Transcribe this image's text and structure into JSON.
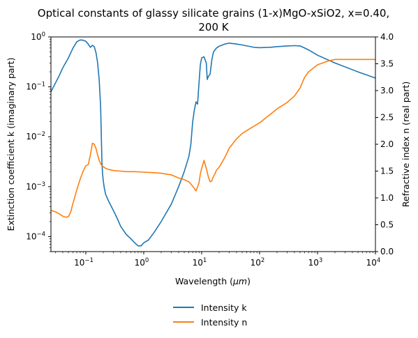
{
  "chart_data": {
    "type": "line",
    "title_line1": "Optical constants of glassy silicate grains (1-x)MgO-xSiO2, x=0.40,",
    "title_line2": "200 K",
    "xlabel_prefix": "Wavelength (",
    "xlabel_unit": "μm",
    "xlabel_suffix": ")",
    "ylabel_left": "Extinction coefficient k (imaginary part)",
    "ylabel_right": "Refractive index n (real part)",
    "x_scale": "log",
    "xlim": [
      0.025,
      10000
    ],
    "y_left_scale": "log",
    "y_left_lim": [
      5e-05,
      1
    ],
    "y_right_scale": "linear",
    "y_right_lim": [
      0,
      4
    ],
    "x_ticks": [
      {
        "value": 0.1,
        "base": "10",
        "exp": "−1"
      },
      {
        "value": 1,
        "base": "10",
        "exp": "0"
      },
      {
        "value": 10,
        "base": "10",
        "exp": "1"
      },
      {
        "value": 100,
        "base": "10",
        "exp": "2"
      },
      {
        "value": 1000,
        "base": "10",
        "exp": "3"
      },
      {
        "value": 10000,
        "base": "10",
        "exp": "4"
      }
    ],
    "y_left_ticks": [
      {
        "value": 1,
        "base": "10",
        "exp": "0"
      },
      {
        "value": 0.1,
        "base": "10",
        "exp": "−1"
      },
      {
        "value": 0.01,
        "base": "10",
        "exp": "−2"
      },
      {
        "value": 0.001,
        "base": "10",
        "exp": "−3"
      },
      {
        "value": 0.0001,
        "base": "10",
        "exp": "−4"
      }
    ],
    "y_right_ticks": [
      "0.0",
      "0.5",
      "1.0",
      "1.5",
      "2.0",
      "2.5",
      "3.0",
      "3.5",
      "4.0"
    ],
    "legend_position": "below",
    "grid": false,
    "series": [
      {
        "name": "Intensity k",
        "axis": "left",
        "color": "#1f77b4",
        "x": [
          0.025,
          0.03,
          0.035,
          0.04,
          0.05,
          0.06,
          0.07,
          0.08,
          0.09,
          0.1,
          0.11,
          0.12,
          0.13,
          0.14,
          0.15,
          0.16,
          0.17,
          0.18,
          0.19,
          0.195,
          0.2,
          0.21,
          0.22,
          0.25,
          0.3,
          0.35,
          0.4,
          0.5,
          0.6,
          0.7,
          0.8,
          0.9,
          1.0,
          1.2,
          1.5,
          2,
          3,
          4,
          5,
          6,
          6.5,
          7,
          7.5,
          8,
          8.5,
          9,
          9.5,
          10,
          11,
          12,
          12.5,
          13,
          14,
          15,
          16,
          18,
          20,
          25,
          30,
          40,
          50,
          60,
          70,
          80,
          100,
          150,
          200,
          300,
          400,
          500,
          600,
          700,
          1000,
          2000,
          5000,
          10000
        ],
        "values": [
          0.08,
          0.12,
          0.17,
          0.24,
          0.38,
          0.6,
          0.8,
          0.87,
          0.86,
          0.82,
          0.72,
          0.62,
          0.68,
          0.64,
          0.48,
          0.3,
          0.14,
          0.04,
          0.003,
          0.0018,
          0.0013,
          0.0009,
          0.0007,
          0.0005,
          0.00033,
          0.00023,
          0.00016,
          0.00011,
          9e-05,
          7.5e-05,
          6.5e-05,
          6.5e-05,
          7.5e-05,
          8.5e-05,
          0.00012,
          0.0002,
          0.00045,
          0.001,
          0.002,
          0.004,
          0.007,
          0.02,
          0.035,
          0.05,
          0.045,
          0.12,
          0.28,
          0.38,
          0.4,
          0.3,
          0.14,
          0.16,
          0.18,
          0.35,
          0.5,
          0.6,
          0.65,
          0.72,
          0.75,
          0.72,
          0.69,
          0.66,
          0.64,
          0.62,
          0.61,
          0.62,
          0.64,
          0.66,
          0.67,
          0.66,
          0.6,
          0.55,
          0.43,
          0.3,
          0.2,
          0.15
        ]
      },
      {
        "name": "Intensity n",
        "axis": "right",
        "color": "#ff7f0e",
        "x": [
          0.025,
          0.03,
          0.035,
          0.04,
          0.045,
          0.05,
          0.055,
          0.06,
          0.07,
          0.08,
          0.09,
          0.1,
          0.11,
          0.12,
          0.13,
          0.14,
          0.15,
          0.16,
          0.17,
          0.18,
          0.19,
          0.2,
          0.22,
          0.25,
          0.3,
          0.4,
          0.5,
          0.7,
          1,
          1.5,
          2,
          3,
          4,
          5,
          6,
          7,
          8,
          9,
          9.5,
          10,
          11,
          12,
          13,
          14,
          15,
          16,
          17,
          18,
          20,
          25,
          30,
          40,
          50,
          70,
          100,
          150,
          200,
          300,
          400,
          500,
          600,
          700,
          1000,
          1500,
          2000,
          3000,
          5000,
          10000
        ],
        "values": [
          0.77,
          0.74,
          0.7,
          0.66,
          0.64,
          0.65,
          0.74,
          0.9,
          1.15,
          1.35,
          1.5,
          1.6,
          1.62,
          1.8,
          2.02,
          2.0,
          1.92,
          1.8,
          1.7,
          1.64,
          1.6,
          1.58,
          1.55,
          1.53,
          1.51,
          1.5,
          1.49,
          1.49,
          1.48,
          1.47,
          1.46,
          1.43,
          1.37,
          1.34,
          1.3,
          1.22,
          1.13,
          1.28,
          1.45,
          1.55,
          1.7,
          1.55,
          1.4,
          1.3,
          1.32,
          1.4,
          1.45,
          1.52,
          1.57,
          1.75,
          1.93,
          2.1,
          2.2,
          2.3,
          2.4,
          2.55,
          2.66,
          2.78,
          2.9,
          3.05,
          3.25,
          3.35,
          3.48,
          3.55,
          3.58,
          3.58,
          3.58,
          3.58
        ]
      }
    ]
  }
}
